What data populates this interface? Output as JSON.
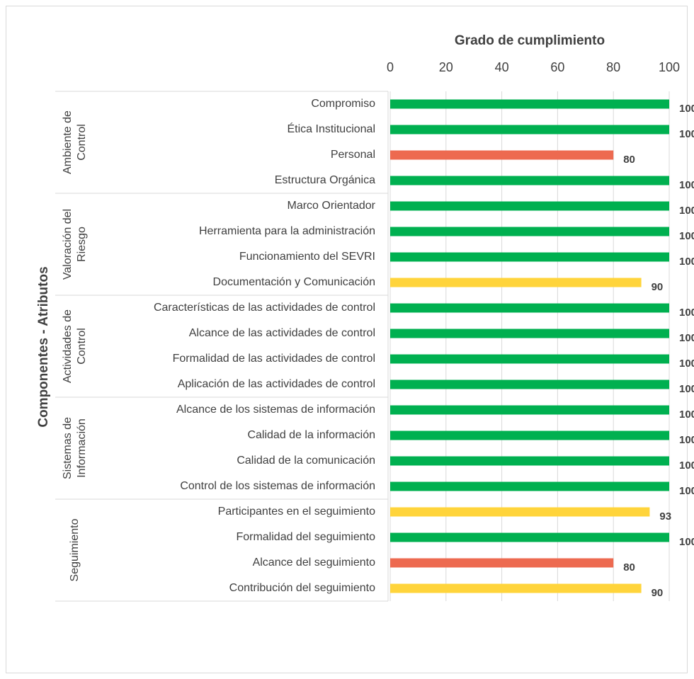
{
  "chart_data": {
    "type": "grouped-hbar",
    "title": "Grado de cumplimiento",
    "y_label": "Componentes - Atributos",
    "xlim": [
      0,
      100
    ],
    "xticks": [
      0,
      20,
      40,
      60,
      80,
      100
    ],
    "grid": true,
    "groups": [
      {
        "name_lines": [
          "Ambiente de",
          "Control"
        ],
        "categories": [
          "Compromiso",
          "Ética Institucional",
          "Personal",
          "Estructura Orgánica"
        ],
        "values": [
          100,
          100,
          80,
          100
        ],
        "colors": [
          "#00b050",
          "#00b050",
          "#ed6a50",
          "#00b050"
        ]
      },
      {
        "name_lines": [
          "Valoración del",
          "Riesgo"
        ],
        "categories": [
          "Marco Orientador",
          "Herramienta para la administración",
          "Funcionamiento del SEVRI",
          "Documentación y Comunicación"
        ],
        "values": [
          100,
          100,
          100,
          90
        ],
        "colors": [
          "#00b050",
          "#00b050",
          "#00b050",
          "#ffd43b"
        ]
      },
      {
        "name_lines": [
          "Actividades de",
          "Control"
        ],
        "categories": [
          "Características de las actividades de control",
          "Alcance de las actividades de control",
          "Formalidad de las actividades de control",
          "Aplicación de las actividades de control"
        ],
        "values": [
          100,
          100,
          100,
          100
        ],
        "colors": [
          "#00b050",
          "#00b050",
          "#00b050",
          "#00b050"
        ]
      },
      {
        "name_lines": [
          "Sistemas de",
          "Información"
        ],
        "categories": [
          "Alcance de los sistemas de información",
          "Calidad de la información",
          "Calidad de la comunicación",
          "Control de los sistemas de información"
        ],
        "values": [
          100,
          100,
          100,
          100
        ],
        "colors": [
          "#00b050",
          "#00b050",
          "#00b050",
          "#00b050"
        ]
      },
      {
        "name_lines": [
          "Seguimiento"
        ],
        "categories": [
          "Participantes en el seguimiento",
          "Formalidad del seguimiento",
          "Alcance del seguimiento",
          "Contribución del seguimiento"
        ],
        "values": [
          93,
          100,
          80,
          90
        ],
        "colors": [
          "#ffd43b",
          "#00b050",
          "#ed6a50",
          "#ffd43b"
        ]
      }
    ]
  }
}
